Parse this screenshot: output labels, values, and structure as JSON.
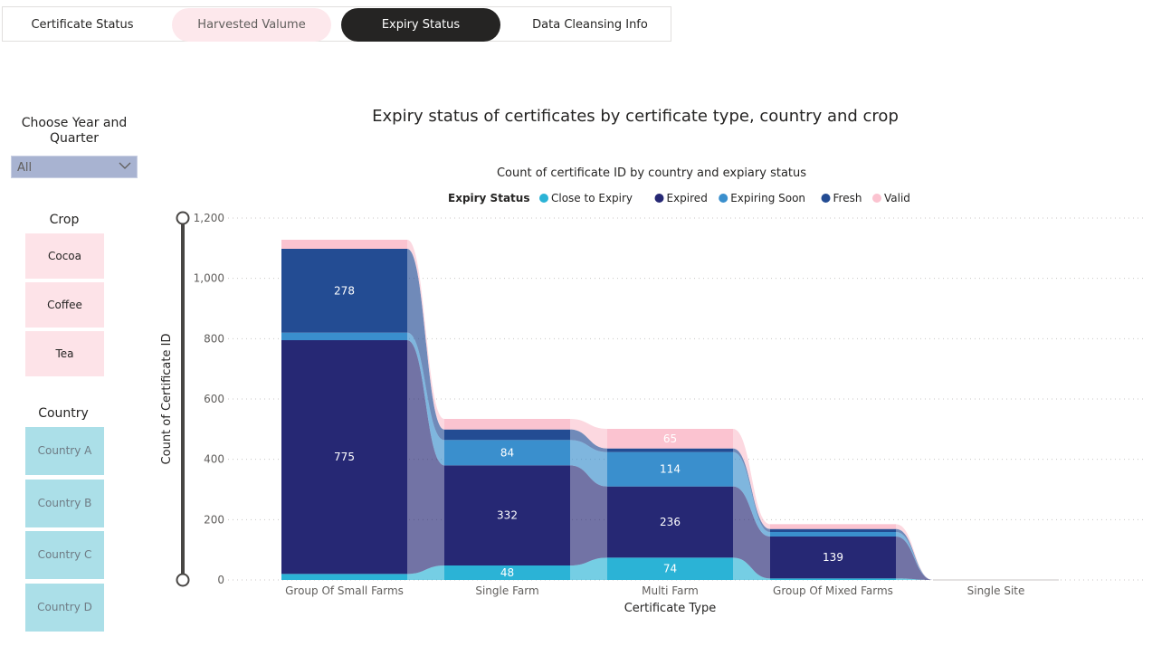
{
  "tabs": [
    {
      "label": "Certificate Status"
    },
    {
      "label": "Harvested Valume"
    },
    {
      "label": "Expiry Status"
    },
    {
      "label": "Data Cleansing Info"
    }
  ],
  "filters": {
    "year_title": "Choose Year and Quarter",
    "year_value": "All",
    "crop_title": "Crop",
    "crops": [
      "Cocoa",
      "Coffee",
      "Tea"
    ],
    "country_title": "Country",
    "countries": [
      "Country A",
      "Country B",
      "Country C",
      "Country D"
    ]
  },
  "visual_title": "Expiry status of certificates by certificate type, country and crop",
  "colors": {
    "close_to_expiry": "#2bb3d6",
    "expired": "#262874",
    "expiring_soon": "#3a8fcd",
    "fresh": "#234c93",
    "valid": "#fbc3d0",
    "active_tab": "#252423",
    "hover_tab": "#fde8ec",
    "crop_tile": "#fde3e8",
    "country_tile": "#abdfe8"
  },
  "chart_data": {
    "type": "bar",
    "title": "Count of certificate ID by country and expiary status",
    "xlabel": "Certificate Type",
    "ylabel": "Count of Certificate ID",
    "legend_title": "Expiry Status",
    "legend_position": "top",
    "ylim": [
      0,
      1200
    ],
    "yticks": [
      0,
      200,
      400,
      600,
      800,
      1000,
      1200
    ],
    "yticklabels": [
      "0",
      "200",
      "400",
      "600",
      "800",
      "1,000",
      "1,200"
    ],
    "grid": true,
    "categories": [
      "Group Of Small Farms",
      "Single Farm",
      "Multi Farm",
      "Group Of Mixed Farms",
      "Single Site"
    ],
    "series": [
      {
        "name": "Close to Expiry",
        "key": "close_to_expiry",
        "values": [
          20,
          48,
          74,
          5,
          0
        ],
        "labels": [
          null,
          "48",
          "74",
          null,
          null
        ]
      },
      {
        "name": "Expired",
        "key": "expired",
        "values": [
          775,
          332,
          236,
          139,
          0
        ],
        "labels": [
          "775",
          "332",
          "236",
          "139",
          null
        ]
      },
      {
        "name": "Expiring Soon",
        "key": "expiring_soon",
        "values": [
          25,
          84,
          114,
          15,
          0
        ],
        "labels": [
          null,
          "84",
          "114",
          null,
          null
        ]
      },
      {
        "name": "Fresh",
        "key": "fresh",
        "values": [
          278,
          35,
          12,
          10,
          0
        ],
        "labels": [
          "278",
          null,
          null,
          null,
          null
        ]
      },
      {
        "name": "Valid",
        "key": "valid",
        "values": [
          30,
          35,
          65,
          16,
          0
        ],
        "labels": [
          null,
          null,
          "65",
          null,
          null
        ]
      }
    ]
  }
}
